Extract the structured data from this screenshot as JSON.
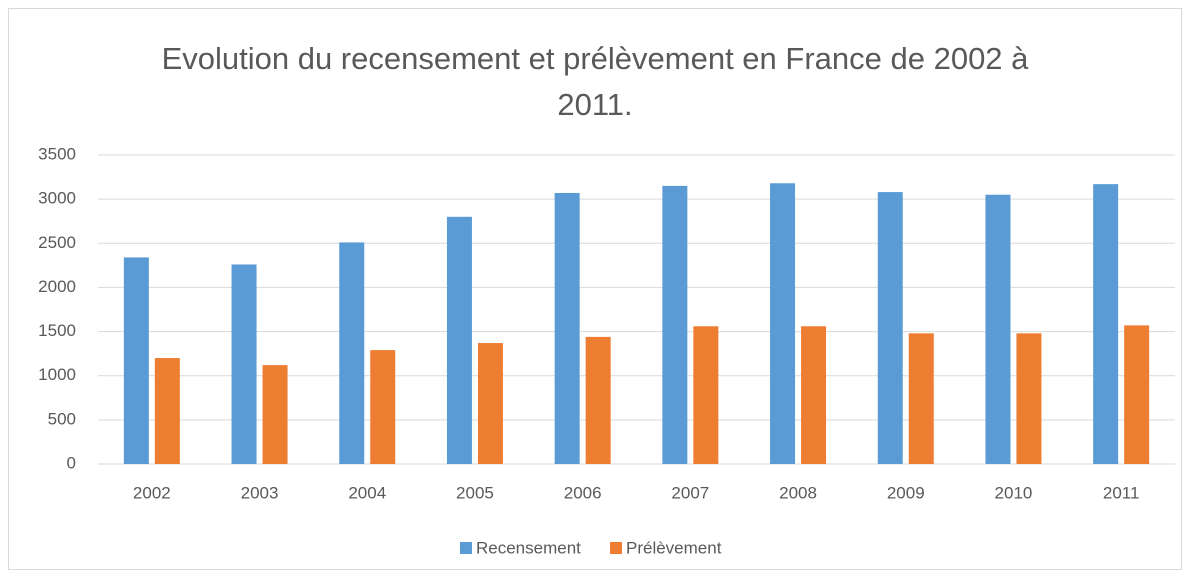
{
  "chart_data": {
    "type": "bar",
    "title": "Evolution du recensement et prélèvement en France de 2002 à 2011.",
    "categories": [
      "2002",
      "2003",
      "2004",
      "2005",
      "2006",
      "2007",
      "2008",
      "2009",
      "2010",
      "2011"
    ],
    "series": [
      {
        "name": "Recensement",
        "color": "#5b9bd5",
        "values": [
          2340,
          2260,
          2510,
          2800,
          3070,
          3150,
          3180,
          3080,
          3050,
          3170
        ]
      },
      {
        "name": "Prélèvement",
        "color": "#ed7d31",
        "values": [
          1200,
          1120,
          1290,
          1370,
          1440,
          1560,
          1560,
          1480,
          1480,
          1570
        ]
      }
    ],
    "ylim": [
      0,
      3500
    ],
    "yticks": [
      0,
      500,
      1000,
      1500,
      2000,
      2500,
      3000,
      3500
    ],
    "grid": true,
    "legend": "bottom"
  }
}
